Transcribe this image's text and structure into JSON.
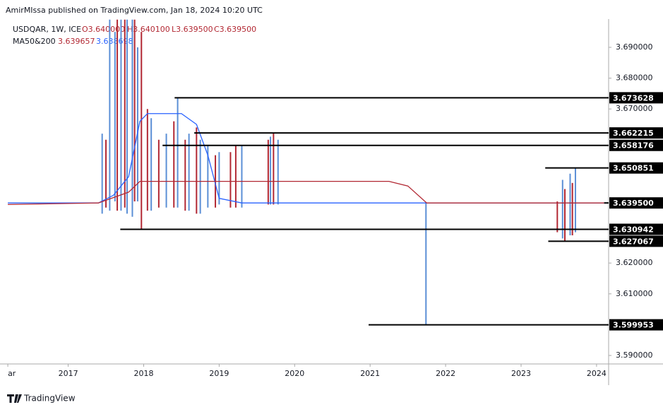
{
  "header": {
    "published": "AmirMIssa published on TradingView.com, Jan 18, 2024 10:20 UTC",
    "symbol": "USDQAR, 1W, ICE",
    "open": "O3.640000",
    "high": "H3.640100",
    "low": "L3.639500",
    "close": "C3.639500",
    "ma_name": "MA50&200",
    "ma50": "3.639657",
    "ma200": "3.638698"
  },
  "footer": {
    "brand": "TradingView"
  },
  "chart_data": {
    "type": "candles",
    "xlim": [
      2016.19,
      2024.16
    ],
    "ylim": [
      3.58725,
      3.69917
    ],
    "xticks": [
      {
        "value": 2016.2,
        "label": "ar"
      },
      2017,
      2018,
      2019,
      2020,
      2021,
      2022,
      2023,
      2024
    ],
    "yticks": [
      {
        "value": 3.59,
        "label": "3.590000"
      },
      {
        "value": 3.61,
        "label": "3.610000"
      },
      {
        "value": 3.62,
        "label": "3.620000"
      },
      {
        "value": 3.67,
        "label": "3.670000"
      },
      {
        "value": 3.68,
        "label": "3.680000"
      },
      {
        "value": 3.69,
        "label": "3.690000"
      }
    ],
    "series": [
      {
        "name": "up",
        "color": "#5b8fd6",
        "x": [
          2017.45,
          2017.55,
          2017.62,
          2017.7,
          2017.78,
          2017.85,
          2017.92,
          2018.1,
          2018.3,
          2018.45,
          2018.6,
          2018.75,
          2018.85,
          2019.0,
          2019.3,
          2019.68,
          2019.78,
          2021.74,
          2023.55,
          2023.65,
          2023.72
        ],
        "high": [
          3.662,
          3.699,
          3.695,
          3.699,
          3.699,
          3.699,
          3.69,
          3.667,
          3.662,
          3.673628,
          3.662,
          3.66,
          3.658,
          3.656,
          3.658,
          3.661,
          3.66,
          3.6395,
          3.647,
          3.649,
          3.650851
        ],
        "low": [
          3.636,
          3.637,
          3.64,
          3.637,
          3.636,
          3.635,
          3.64,
          3.637,
          3.638,
          3.638,
          3.637,
          3.636,
          3.638,
          3.639,
          3.638,
          3.639,
          3.639,
          3.599953,
          3.628,
          3.629,
          3.63
        ]
      },
      {
        "name": "down",
        "color": "#b22833",
        "x": [
          2017.5,
          2017.65,
          2017.75,
          2017.88,
          2017.97,
          2018.05,
          2018.2,
          2018.4,
          2018.55,
          2018.7,
          2018.95,
          2019.15,
          2019.22,
          2019.65,
          2019.72,
          2023.48,
          2023.58,
          2023.68
        ],
        "high": [
          3.66,
          3.699,
          3.699,
          3.699,
          3.695,
          3.67,
          3.66,
          3.666,
          3.66,
          3.664,
          3.655,
          3.656,
          3.658,
          3.66,
          3.662215,
          3.64,
          3.644,
          3.646
        ],
        "low": [
          3.638,
          3.637,
          3.638,
          3.64,
          3.630942,
          3.637,
          3.638,
          3.638,
          3.637,
          3.636,
          3.638,
          3.638,
          3.638,
          3.639,
          3.639,
          3.63,
          3.627067,
          3.629
        ]
      }
    ],
    "moving_averages": [
      {
        "name": "MA50",
        "color": "#2962ff",
        "x": [
          2016.2,
          2017.4,
          2017.6,
          2017.8,
          2017.95,
          2018.05,
          2018.5,
          2018.7,
          2018.85,
          2019.0,
          2019.3,
          2024.1
        ],
        "values": [
          3.6395,
          3.6395,
          3.642,
          3.648,
          3.666,
          3.6685,
          3.6685,
          3.665,
          3.655,
          3.641,
          3.6395,
          3.6395
        ]
      },
      {
        "name": "MA200",
        "color": "#b22833",
        "x": [
          2016.2,
          2017.4,
          2017.8,
          2017.95,
          2021.25,
          2021.5,
          2021.75,
          2024.1
        ],
        "values": [
          3.639,
          3.6395,
          3.643,
          3.6465,
          3.6465,
          3.645,
          3.6395,
          3.6395
        ]
      }
    ],
    "levels": {
      "color": "#000000",
      "start": [
        2018.41,
        2018.67,
        2018.25,
        2023.32,
        2024.1,
        2017.69,
        2023.36,
        2020.98
      ],
      "values": [
        3.673628,
        3.662215,
        3.658176,
        3.650851,
        3.6395,
        3.630942,
        3.627067,
        3.599953
      ],
      "value_labels": [
        "3.673628",
        "3.662215",
        "3.658176",
        "3.650851",
        "3.639500",
        "3.630942",
        "3.627067",
        "3.599953"
      ]
    }
  }
}
